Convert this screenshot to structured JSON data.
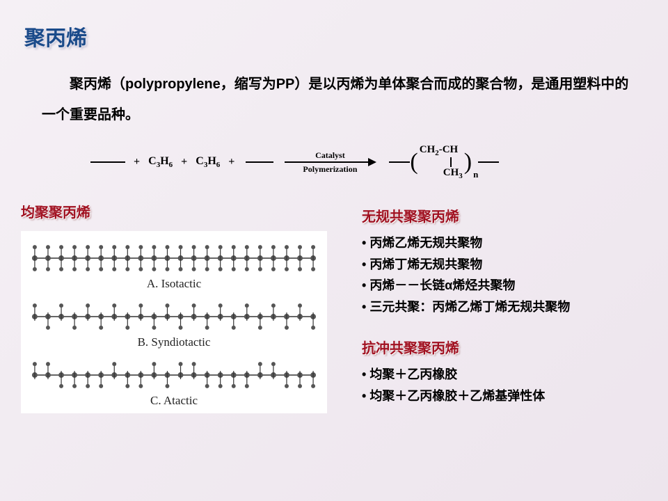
{
  "title": "聚丙烯",
  "intro": "聚丙烯（polypropylene，缩写为PP）是以丙烯为单体聚合而成的聚合物，是通用塑料中的一个重要品种。",
  "reaction": {
    "monomer": "C3H6",
    "arrow_top_label": "Catalyst",
    "arrow_bottom_label": "Polymerization",
    "product_top": "CH2-CH",
    "product_bottom": "CH3",
    "repeat_sub": "n"
  },
  "left": {
    "heading": "均聚聚丙烯",
    "diagram": {
      "background": "#ffffff",
      "stroke": "#333333",
      "bead_fill": "#555555",
      "bead_radius": 4,
      "stem_len": 16,
      "n_units": 22,
      "label_a": "A. Isotactic",
      "label_b": "B. Syndiotactic",
      "label_c": "C. Atactic"
    }
  },
  "right": {
    "random": {
      "heading": "无规共聚聚丙烯",
      "items": [
        "丙烯乙烯无规共聚物",
        "丙烯丁烯无规共聚物",
        "丙烯－－长链α烯烃共聚物",
        "三元共聚：丙烯乙烯丁烯无规共聚物"
      ]
    },
    "impact": {
      "heading": "抗冲共聚聚丙烯",
      "items": [
        "均聚＋乙丙橡胶",
        "均聚＋乙丙橡胶＋乙烯基弹性体"
      ]
    }
  },
  "colors": {
    "title_color": "#1a4a8a",
    "heading_color": "#a01020",
    "text_color": "#000000",
    "bg_start": "#f5f0f5",
    "bg_end": "#ede5ed"
  },
  "typography": {
    "title_fontsize": 30,
    "intro_fontsize": 20,
    "heading_fontsize": 20,
    "bullet_fontsize": 18,
    "diagram_label_fontsize": 17
  }
}
